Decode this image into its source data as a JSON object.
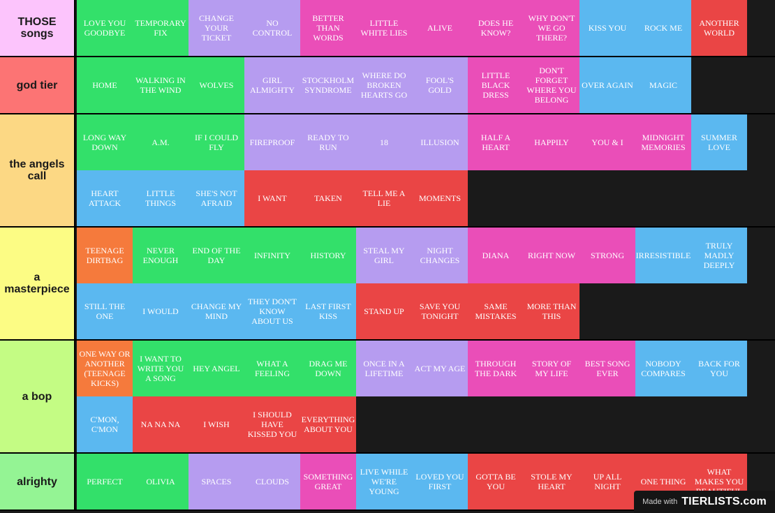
{
  "colors": {
    "green": "#33e06a",
    "lavender": "#b69cf0",
    "pink": "#ea4eb8",
    "blue": "#5bb8f0",
    "red": "#ea4545",
    "orange": "#f57a3c"
  },
  "tiers": [
    {
      "label": "THOSE songs",
      "color": "#fcc4fc",
      "lines": 1,
      "items": [
        {
          "text": "LOVE YOU GOODBYE",
          "c": "green"
        },
        {
          "text": "TEMPORARY FIX",
          "c": "green"
        },
        {
          "text": "CHANGE YOUR TICKET",
          "c": "lavender"
        },
        {
          "text": "NO CONTROL",
          "c": "lavender"
        },
        {
          "text": "BETTER THAN WORDS",
          "c": "pink"
        },
        {
          "text": "LITTLE WHITE LIES",
          "c": "pink"
        },
        {
          "text": "ALIVE",
          "c": "pink"
        },
        {
          "text": "DOES HE KNOW?",
          "c": "pink"
        },
        {
          "text": "WHY DON'T WE GO THERE?",
          "c": "pink"
        },
        {
          "text": "KISS YOU",
          "c": "blue"
        },
        {
          "text": "ROCK ME",
          "c": "blue"
        },
        {
          "text": "ANOTHER WORLD",
          "c": "red"
        }
      ]
    },
    {
      "label": "god tier",
      "color": "#fc7474",
      "lines": 1,
      "items": [
        {
          "text": "HOME",
          "c": "green"
        },
        {
          "text": "WALKING IN THE WIND",
          "c": "green"
        },
        {
          "text": "WOLVES",
          "c": "green"
        },
        {
          "text": "GIRL ALMIGHTY",
          "c": "lavender"
        },
        {
          "text": "STOCKHOLM SYNDROME",
          "c": "lavender"
        },
        {
          "text": "WHERE DO BROKEN HEARTS GO",
          "c": "lavender"
        },
        {
          "text": "FOOL'S GOLD",
          "c": "lavender"
        },
        {
          "text": "LITTLE BLACK DRESS",
          "c": "pink"
        },
        {
          "text": "DON'T FORGET WHERE YOU BELONG",
          "c": "pink"
        },
        {
          "text": "OVER AGAIN",
          "c": "blue"
        },
        {
          "text": "MAGIC",
          "c": "blue"
        }
      ]
    },
    {
      "label": "the angels call",
      "color": "#fcd884",
      "lines": 2,
      "items": [
        {
          "text": "LONG WAY DOWN",
          "c": "green"
        },
        {
          "text": "A.M.",
          "c": "green"
        },
        {
          "text": "IF I COULD FLY",
          "c": "green"
        },
        {
          "text": "FIREPROOF",
          "c": "lavender"
        },
        {
          "text": "READY TO RUN",
          "c": "lavender"
        },
        {
          "text": "18",
          "c": "lavender"
        },
        {
          "text": "ILLUSION",
          "c": "lavender"
        },
        {
          "text": "HALF A HEART",
          "c": "pink"
        },
        {
          "text": "HAPPILY",
          "c": "pink"
        },
        {
          "text": "YOU & I",
          "c": "pink"
        },
        {
          "text": "MIDNIGHT MEMORIES",
          "c": "pink"
        },
        {
          "text": "SUMMER LOVE",
          "c": "blue"
        },
        {
          "text": "HEART ATTACK",
          "c": "blue"
        },
        {
          "text": "LITTLE THINGS",
          "c": "blue"
        },
        {
          "text": "SHE'S NOT AFRAID",
          "c": "blue"
        },
        {
          "text": "I WANT",
          "c": "red"
        },
        {
          "text": "TAKEN",
          "c": "red"
        },
        {
          "text": "TELL ME A LIE",
          "c": "red"
        },
        {
          "text": "MOMENTS",
          "c": "red"
        }
      ]
    },
    {
      "label": "a masterpiece",
      "color": "#fcfc84",
      "lines": 2,
      "items": [
        {
          "text": "TEENAGE DIRTBAG",
          "c": "orange"
        },
        {
          "text": "NEVER ENOUGH",
          "c": "green"
        },
        {
          "text": "END OF THE DAY",
          "c": "green"
        },
        {
          "text": "INFINITY",
          "c": "green"
        },
        {
          "text": "HISTORY",
          "c": "green"
        },
        {
          "text": "STEAL MY GIRL",
          "c": "lavender"
        },
        {
          "text": "NIGHT CHANGES",
          "c": "lavender"
        },
        {
          "text": "DIANA",
          "c": "pink"
        },
        {
          "text": "RIGHT NOW",
          "c": "pink"
        },
        {
          "text": "STRONG",
          "c": "pink"
        },
        {
          "text": "IRRESISTIBLE",
          "c": "blue"
        },
        {
          "text": "TRULY MADLY DEEPLY",
          "c": "blue"
        },
        {
          "text": "STILL THE ONE",
          "c": "blue"
        },
        {
          "text": "I WOULD",
          "c": "blue"
        },
        {
          "text": "CHANGE MY MIND",
          "c": "blue"
        },
        {
          "text": "THEY DON'T KNOW ABOUT US",
          "c": "blue"
        },
        {
          "text": "LAST FIRST KISS",
          "c": "blue"
        },
        {
          "text": "STAND UP",
          "c": "red"
        },
        {
          "text": "SAVE YOU TONIGHT",
          "c": "red"
        },
        {
          "text": "SAME MISTAKES",
          "c": "red"
        },
        {
          "text": "MORE THAN THIS",
          "c": "red"
        }
      ]
    },
    {
      "label": "a bop",
      "color": "#c4fc84",
      "lines": 2,
      "items": [
        {
          "text": "ONE WAY OR ANOTHER (TEENAGE KICKS)",
          "c": "orange"
        },
        {
          "text": "I WANT TO WRITE YOU A SONG",
          "c": "green"
        },
        {
          "text": "HEY ANGEL",
          "c": "green"
        },
        {
          "text": "WHAT A FEELING",
          "c": "green"
        },
        {
          "text": "DRAG ME DOWN",
          "c": "green"
        },
        {
          "text": "ONCE IN A LIFETIME",
          "c": "lavender"
        },
        {
          "text": "ACT MY AGE",
          "c": "lavender"
        },
        {
          "text": "THROUGH THE DARK",
          "c": "pink"
        },
        {
          "text": "STORY OF MY LIFE",
          "c": "pink"
        },
        {
          "text": "BEST SONG EVER",
          "c": "pink"
        },
        {
          "text": "NOBODY COMPARES",
          "c": "blue"
        },
        {
          "text": "BACK FOR YOU",
          "c": "blue"
        },
        {
          "text": "C'MON, C'MON",
          "c": "blue"
        },
        {
          "text": "NA NA NA",
          "c": "red"
        },
        {
          "text": "I WISH",
          "c": "red"
        },
        {
          "text": "I SHOULD HAVE KISSED YOU",
          "c": "red"
        },
        {
          "text": "EVERYTHING ABOUT YOU",
          "c": "red"
        }
      ]
    },
    {
      "label": "alrighty",
      "color": "#94f494",
      "lines": 1,
      "items": [
        {
          "text": "PERFECT",
          "c": "green"
        },
        {
          "text": "OLIVIA",
          "c": "green"
        },
        {
          "text": "SPACES",
          "c": "lavender"
        },
        {
          "text": "CLOUDS",
          "c": "lavender"
        },
        {
          "text": "SOMETHING GREAT",
          "c": "pink"
        },
        {
          "text": "LIVE WHILE WE'RE YOUNG",
          "c": "blue"
        },
        {
          "text": "LOVED YOU FIRST",
          "c": "blue"
        },
        {
          "text": "GOTTA BE YOU",
          "c": "red"
        },
        {
          "text": "STOLE MY HEART",
          "c": "red"
        },
        {
          "text": "UP ALL NIGHT",
          "c": "red"
        },
        {
          "text": "ONE THING",
          "c": "red"
        },
        {
          "text": "WHAT MAKES YOU BEAUTIFUL",
          "c": "red"
        }
      ]
    }
  ],
  "watermark": {
    "made_with": "Made with",
    "logo": "TIERLISTS.com"
  }
}
